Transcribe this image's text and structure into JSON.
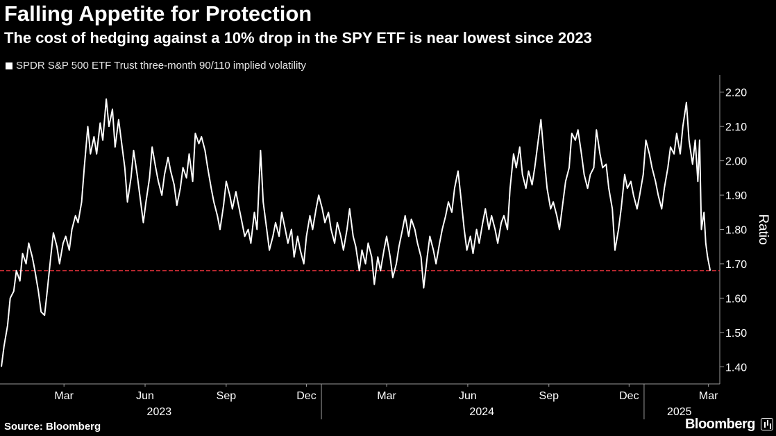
{
  "chart_data": {
    "type": "line",
    "title": "Falling Appetite for Protection",
    "subtitle": "The cost of hedging against a 10% drop in the SPY ETF is near lowest since 2023",
    "ylabel": "Ratio",
    "ylim": [
      1.35,
      2.25
    ],
    "yticks": [
      "1.40",
      "1.50",
      "1.60",
      "1.70",
      "1.80",
      "1.90",
      "2.00",
      "2.10",
      "2.20"
    ],
    "xlim": [
      "2023-01-03",
      "2025-03-20"
    ],
    "month_ticks": [
      {
        "label": "Mar",
        "date": "2023-03-15"
      },
      {
        "label": "Jun",
        "date": "2023-06-15"
      },
      {
        "label": "Sep",
        "date": "2023-09-15"
      },
      {
        "label": "Dec",
        "date": "2023-12-15"
      },
      {
        "label": "Mar",
        "date": "2024-03-15"
      },
      {
        "label": "Jun",
        "date": "2024-06-15"
      },
      {
        "label": "Sep",
        "date": "2024-09-15"
      },
      {
        "label": "Dec",
        "date": "2024-12-15"
      },
      {
        "label": "Mar",
        "date": "2025-03-15"
      }
    ],
    "year_labels": [
      {
        "label": "2023",
        "date": "2023-07-01"
      },
      {
        "label": "2024",
        "date": "2024-07-01"
      },
      {
        "label": "2025",
        "date": "2025-02-10"
      }
    ],
    "year_boundaries": [
      "2024-01-01",
      "2025-01-01"
    ],
    "reference_line": {
      "value": 1.68,
      "color": "#e0303a",
      "style": "dashed"
    },
    "grid": false,
    "series": [
      {
        "name": "SPDR S&P 500 ETF Trust three-month 90/110 implied volatility",
        "color": "#ffffff",
        "points": [
          [
            "2023-01-03",
            1.4
          ],
          [
            "2023-01-06",
            1.46
          ],
          [
            "2023-01-10",
            1.52
          ],
          [
            "2023-01-13",
            1.6
          ],
          [
            "2023-01-17",
            1.62
          ],
          [
            "2023-01-20",
            1.68
          ],
          [
            "2023-01-24",
            1.65
          ],
          [
            "2023-01-27",
            1.73
          ],
          [
            "2023-01-31",
            1.7
          ],
          [
            "2023-02-03",
            1.76
          ],
          [
            "2023-02-07",
            1.72
          ],
          [
            "2023-02-10",
            1.68
          ],
          [
            "2023-02-14",
            1.62
          ],
          [
            "2023-02-17",
            1.56
          ],
          [
            "2023-02-21",
            1.55
          ],
          [
            "2023-02-24",
            1.62
          ],
          [
            "2023-02-28",
            1.72
          ],
          [
            "2023-03-03",
            1.79
          ],
          [
            "2023-03-07",
            1.75
          ],
          [
            "2023-03-10",
            1.7
          ],
          [
            "2023-03-14",
            1.76
          ],
          [
            "2023-03-17",
            1.78
          ],
          [
            "2023-03-21",
            1.74
          ],
          [
            "2023-03-24",
            1.8
          ],
          [
            "2023-03-28",
            1.84
          ],
          [
            "2023-03-31",
            1.82
          ],
          [
            "2023-04-04",
            1.88
          ],
          [
            "2023-04-07",
            1.98
          ],
          [
            "2023-04-11",
            2.1
          ],
          [
            "2023-04-14",
            2.02
          ],
          [
            "2023-04-18",
            2.07
          ],
          [
            "2023-04-21",
            2.02
          ],
          [
            "2023-04-25",
            2.11
          ],
          [
            "2023-04-28",
            2.06
          ],
          [
            "2023-05-02",
            2.18
          ],
          [
            "2023-05-05",
            2.1
          ],
          [
            "2023-05-09",
            2.15
          ],
          [
            "2023-05-12",
            2.04
          ],
          [
            "2023-05-16",
            2.12
          ],
          [
            "2023-05-19",
            2.06
          ],
          [
            "2023-05-23",
            1.98
          ],
          [
            "2023-05-26",
            1.88
          ],
          [
            "2023-05-30",
            1.95
          ],
          [
            "2023-06-02",
            2.03
          ],
          [
            "2023-06-06",
            1.96
          ],
          [
            "2023-06-09",
            1.9
          ],
          [
            "2023-06-13",
            1.82
          ],
          [
            "2023-06-16",
            1.88
          ],
          [
            "2023-06-20",
            1.95
          ],
          [
            "2023-06-23",
            2.04
          ],
          [
            "2023-06-27",
            1.98
          ],
          [
            "2023-06-30",
            1.94
          ],
          [
            "2023-07-04",
            1.9
          ],
          [
            "2023-07-07",
            1.96
          ],
          [
            "2023-07-11",
            2.01
          ],
          [
            "2023-07-14",
            1.97
          ],
          [
            "2023-07-18",
            1.93
          ],
          [
            "2023-07-21",
            1.87
          ],
          [
            "2023-07-25",
            1.92
          ],
          [
            "2023-07-28",
            1.98
          ],
          [
            "2023-08-01",
            1.95
          ],
          [
            "2023-08-04",
            2.02
          ],
          [
            "2023-08-08",
            1.94
          ],
          [
            "2023-08-11",
            2.08
          ],
          [
            "2023-08-15",
            2.05
          ],
          [
            "2023-08-18",
            2.07
          ],
          [
            "2023-08-22",
            2.03
          ],
          [
            "2023-08-25",
            1.98
          ],
          [
            "2023-08-29",
            1.92
          ],
          [
            "2023-09-01",
            1.88
          ],
          [
            "2023-09-05",
            1.84
          ],
          [
            "2023-09-08",
            1.8
          ],
          [
            "2023-09-12",
            1.87
          ],
          [
            "2023-09-15",
            1.94
          ],
          [
            "2023-09-19",
            1.9
          ],
          [
            "2023-09-22",
            1.86
          ],
          [
            "2023-09-26",
            1.91
          ],
          [
            "2023-09-29",
            1.87
          ],
          [
            "2023-10-03",
            1.82
          ],
          [
            "2023-10-06",
            1.78
          ],
          [
            "2023-10-10",
            1.8
          ],
          [
            "2023-10-13",
            1.76
          ],
          [
            "2023-10-17",
            1.85
          ],
          [
            "2023-10-20",
            1.8
          ],
          [
            "2023-10-24",
            2.03
          ],
          [
            "2023-10-27",
            1.88
          ],
          [
            "2023-10-31",
            1.8
          ],
          [
            "2023-11-03",
            1.74
          ],
          [
            "2023-11-07",
            1.78
          ],
          [
            "2023-11-10",
            1.82
          ],
          [
            "2023-11-14",
            1.78
          ],
          [
            "2023-11-17",
            1.85
          ],
          [
            "2023-11-21",
            1.8
          ],
          [
            "2023-11-24",
            1.76
          ],
          [
            "2023-11-28",
            1.8
          ],
          [
            "2023-12-01",
            1.72
          ],
          [
            "2023-12-05",
            1.78
          ],
          [
            "2023-12-08",
            1.74
          ],
          [
            "2023-12-12",
            1.7
          ],
          [
            "2023-12-15",
            1.78
          ],
          [
            "2023-12-19",
            1.84
          ],
          [
            "2023-12-22",
            1.8
          ],
          [
            "2023-12-26",
            1.86
          ],
          [
            "2023-12-29",
            1.9
          ],
          [
            "2024-01-02",
            1.86
          ],
          [
            "2024-01-05",
            1.82
          ],
          [
            "2024-01-09",
            1.85
          ],
          [
            "2024-01-12",
            1.8
          ],
          [
            "2024-01-16",
            1.76
          ],
          [
            "2024-01-19",
            1.82
          ],
          [
            "2024-01-23",
            1.78
          ],
          [
            "2024-01-26",
            1.74
          ],
          [
            "2024-01-30",
            1.8
          ],
          [
            "2024-02-02",
            1.86
          ],
          [
            "2024-02-06",
            1.78
          ],
          [
            "2024-02-09",
            1.75
          ],
          [
            "2024-02-13",
            1.68
          ],
          [
            "2024-02-16",
            1.74
          ],
          [
            "2024-02-20",
            1.7
          ],
          [
            "2024-02-23",
            1.76
          ],
          [
            "2024-02-27",
            1.72
          ],
          [
            "2024-03-01",
            1.64
          ],
          [
            "2024-03-05",
            1.72
          ],
          [
            "2024-03-08",
            1.68
          ],
          [
            "2024-03-12",
            1.74
          ],
          [
            "2024-03-15",
            1.78
          ],
          [
            "2024-03-19",
            1.72
          ],
          [
            "2024-03-22",
            1.66
          ],
          [
            "2024-03-26",
            1.7
          ],
          [
            "2024-03-29",
            1.75
          ],
          [
            "2024-04-02",
            1.8
          ],
          [
            "2024-04-05",
            1.84
          ],
          [
            "2024-04-09",
            1.78
          ],
          [
            "2024-04-12",
            1.83
          ],
          [
            "2024-04-16",
            1.8
          ],
          [
            "2024-04-19",
            1.76
          ],
          [
            "2024-04-23",
            1.72
          ],
          [
            "2024-04-26",
            1.63
          ],
          [
            "2024-04-30",
            1.72
          ],
          [
            "2024-05-03",
            1.78
          ],
          [
            "2024-05-07",
            1.74
          ],
          [
            "2024-05-10",
            1.7
          ],
          [
            "2024-05-14",
            1.76
          ],
          [
            "2024-05-17",
            1.8
          ],
          [
            "2024-05-21",
            1.84
          ],
          [
            "2024-05-24",
            1.88
          ],
          [
            "2024-05-28",
            1.85
          ],
          [
            "2024-05-31",
            1.92
          ],
          [
            "2024-06-04",
            1.97
          ],
          [
            "2024-06-07",
            1.9
          ],
          [
            "2024-06-11",
            1.8
          ],
          [
            "2024-06-14",
            1.74
          ],
          [
            "2024-06-18",
            1.78
          ],
          [
            "2024-06-21",
            1.73
          ],
          [
            "2024-06-25",
            1.8
          ],
          [
            "2024-06-28",
            1.76
          ],
          [
            "2024-07-02",
            1.82
          ],
          [
            "2024-07-05",
            1.86
          ],
          [
            "2024-07-09",
            1.8
          ],
          [
            "2024-07-12",
            1.84
          ],
          [
            "2024-07-16",
            1.8
          ],
          [
            "2024-07-19",
            1.76
          ],
          [
            "2024-07-23",
            1.82
          ],
          [
            "2024-07-26",
            1.84
          ],
          [
            "2024-07-30",
            1.8
          ],
          [
            "2024-08-02",
            1.92
          ],
          [
            "2024-08-06",
            2.02
          ],
          [
            "2024-08-09",
            1.98
          ],
          [
            "2024-08-13",
            2.04
          ],
          [
            "2024-08-16",
            1.96
          ],
          [
            "2024-08-20",
            1.92
          ],
          [
            "2024-08-23",
            1.97
          ],
          [
            "2024-08-27",
            1.93
          ],
          [
            "2024-08-30",
            1.98
          ],
          [
            "2024-09-03",
            2.06
          ],
          [
            "2024-09-06",
            2.12
          ],
          [
            "2024-09-10",
            2.0
          ],
          [
            "2024-09-13",
            1.92
          ],
          [
            "2024-09-17",
            1.86
          ],
          [
            "2024-09-20",
            1.88
          ],
          [
            "2024-09-24",
            1.84
          ],
          [
            "2024-09-27",
            1.8
          ],
          [
            "2024-10-01",
            1.88
          ],
          [
            "2024-10-04",
            1.94
          ],
          [
            "2024-10-08",
            1.98
          ],
          [
            "2024-10-11",
            2.08
          ],
          [
            "2024-10-15",
            2.06
          ],
          [
            "2024-10-18",
            2.09
          ],
          [
            "2024-10-22",
            2.02
          ],
          [
            "2024-10-25",
            1.96
          ],
          [
            "2024-10-29",
            1.92
          ],
          [
            "2024-11-01",
            1.96
          ],
          [
            "2024-11-05",
            1.98
          ],
          [
            "2024-11-08",
            2.09
          ],
          [
            "2024-11-12",
            2.02
          ],
          [
            "2024-11-15",
            1.98
          ],
          [
            "2024-11-19",
            1.99
          ],
          [
            "2024-11-22",
            1.92
          ],
          [
            "2024-11-26",
            1.86
          ],
          [
            "2024-11-29",
            1.74
          ],
          [
            "2024-12-03",
            1.8
          ],
          [
            "2024-12-06",
            1.86
          ],
          [
            "2024-12-10",
            1.96
          ],
          [
            "2024-12-13",
            1.92
          ],
          [
            "2024-12-17",
            1.94
          ],
          [
            "2024-12-20",
            1.9
          ],
          [
            "2024-12-24",
            1.86
          ],
          [
            "2024-12-27",
            1.9
          ],
          [
            "2024-12-31",
            1.96
          ],
          [
            "2025-01-03",
            2.06
          ],
          [
            "2025-01-07",
            2.02
          ],
          [
            "2025-01-10",
            1.98
          ],
          [
            "2025-01-14",
            1.94
          ],
          [
            "2025-01-17",
            1.9
          ],
          [
            "2025-01-21",
            1.86
          ],
          [
            "2025-01-24",
            1.92
          ],
          [
            "2025-01-28",
            1.98
          ],
          [
            "2025-01-31",
            2.04
          ],
          [
            "2025-02-04",
            2.02
          ],
          [
            "2025-02-07",
            2.08
          ],
          [
            "2025-02-11",
            2.02
          ],
          [
            "2025-02-14",
            2.1
          ],
          [
            "2025-02-18",
            2.17
          ],
          [
            "2025-02-21",
            2.06
          ],
          [
            "2025-02-25",
            1.99
          ],
          [
            "2025-02-28",
            2.06
          ],
          [
            "2025-03-03",
            1.94
          ],
          [
            "2025-03-05",
            2.06
          ],
          [
            "2025-03-07",
            1.8
          ],
          [
            "2025-03-10",
            1.85
          ],
          [
            "2025-03-12",
            1.76
          ],
          [
            "2025-03-14",
            1.72
          ],
          [
            "2025-03-17",
            1.68
          ]
        ]
      }
    ]
  },
  "legend": {
    "label": "SPDR S&P 500 ETF Trust three-month 90/110 implied volatility"
  },
  "footer": {
    "source": "Source: Bloomberg",
    "brand": "Bloomberg"
  }
}
